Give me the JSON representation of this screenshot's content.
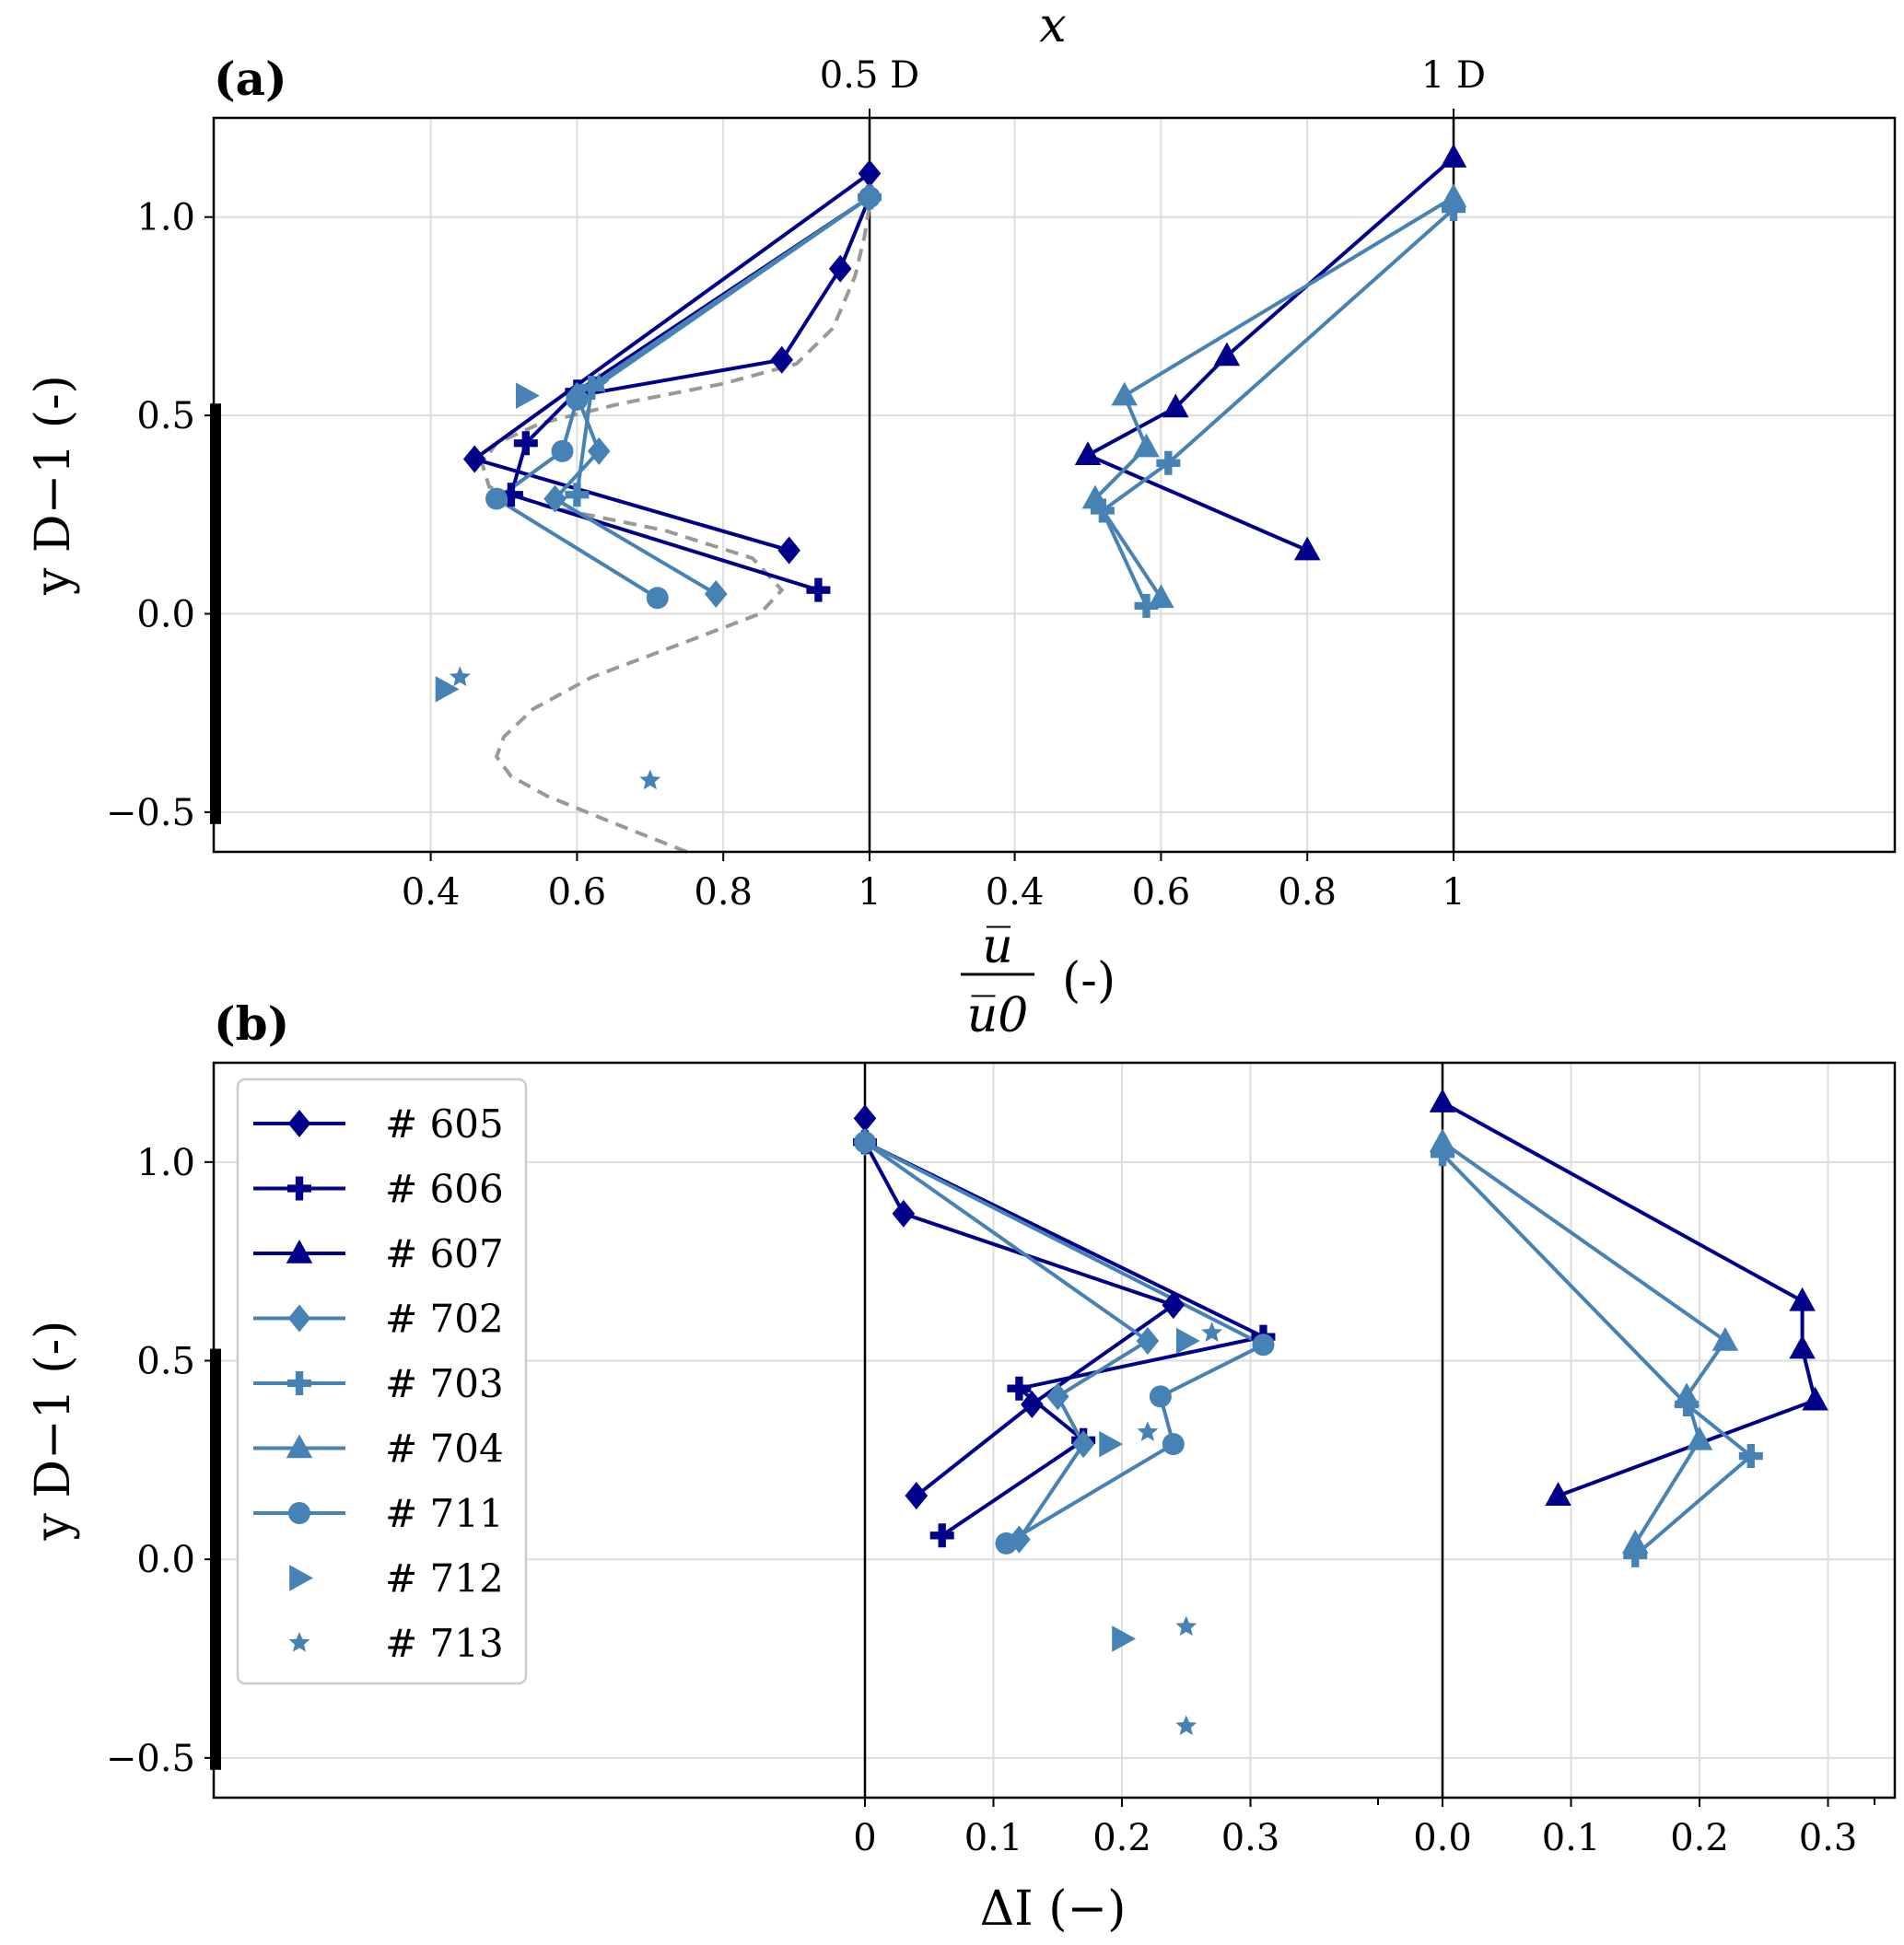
{
  "colors": {
    "dark": "#00008b",
    "light": "#4682b4",
    "model": "#999999",
    "grid": "#dddddd"
  },
  "chart_data": [
    {
      "panel": "a",
      "label": "(a)",
      "type": "line",
      "top_axis_label": "x",
      "top_ticks": [
        "0.5 D",
        "1 D"
      ],
      "xlabel_num": "u̅",
      "xlabel_den": "u̅0",
      "xlabel_unit": "(-)",
      "ylabel": "y D−1 (-)",
      "ylim": [
        -0.6,
        1.25
      ],
      "yticks": [
        -0.5,
        0.0,
        0.5,
        1.0
      ],
      "ytick_labels": [
        "−0.5",
        "0.0",
        "0.5",
        "1.0"
      ],
      "groups": [
        {
          "name": "0.5 D",
          "xlim_ref": 1.0,
          "xticks": [
            0.4,
            0.6,
            0.8,
            1.0
          ],
          "xtick_labels": [
            "0.4",
            "0.6",
            "0.8",
            "1"
          ],
          "model_curve": {
            "name": "model",
            "points": [
              [
                0.75,
                -0.6
              ],
              [
                0.64,
                -0.52
              ],
              [
                0.56,
                -0.46
              ],
              [
                0.51,
                -0.41
              ],
              [
                0.49,
                -0.36
              ],
              [
                0.5,
                -0.31
              ],
              [
                0.54,
                -0.24
              ],
              [
                0.62,
                -0.16
              ],
              [
                0.75,
                -0.07
              ],
              [
                0.85,
                0.0
              ],
              [
                0.88,
                0.06
              ],
              [
                0.84,
                0.14
              ],
              [
                0.72,
                0.21
              ],
              [
                0.56,
                0.27
              ],
              [
                0.48,
                0.32
              ],
              [
                0.47,
                0.38
              ],
              [
                0.49,
                0.43
              ],
              [
                0.55,
                0.48
              ],
              [
                0.66,
                0.53
              ],
              [
                0.8,
                0.58
              ],
              [
                0.9,
                0.63
              ],
              [
                0.95,
                0.72
              ],
              [
                0.98,
                0.85
              ],
              [
                0.993,
                0.95
              ],
              [
                1.0,
                1.03
              ]
            ]
          },
          "series": [
            {
              "name": "# 605",
              "marker": "diamond",
              "color": "dark",
              "line": true,
              "points": [
                [
                  1.0,
                  1.11
                ],
                [
                  0.46,
                  0.39
                ],
                [
                  0.89,
                  0.16
                ]
              ]
            },
            {
              "name": "# 605",
              "marker": "diamond",
              "color": "dark",
              "line": true,
              "points": [
                [
                  1.0,
                  1.05
                ],
                [
                  0.96,
                  0.87
                ],
                [
                  0.88,
                  0.64
                ],
                [
                  0.6,
                  0.55
                ]
              ]
            },
            {
              "name": "# 606",
              "marker": "plus",
              "color": "dark",
              "line": true,
              "points": [
                [
                  1.0,
                  1.05
                ],
                [
                  0.6,
                  0.56
                ],
                [
                  0.53,
                  0.43
                ],
                [
                  0.51,
                  0.3
                ],
                [
                  0.93,
                  0.06
                ]
              ]
            },
            {
              "name": "# 702",
              "marker": "diamond",
              "color": "light",
              "line": true,
              "points": [
                [
                  1.0,
                  1.05
                ],
                [
                  0.6,
                  0.55
                ],
                [
                  0.63,
                  0.41
                ],
                [
                  0.57,
                  0.29
                ],
                [
                  0.79,
                  0.05
                ]
              ]
            },
            {
              "name": "# 703",
              "marker": "plus",
              "color": "light",
              "line": true,
              "points": [
                [
                  1.0,
                  1.05
                ],
                [
                  0.62,
                  0.57
                ],
                [
                  0.6,
                  0.3
                ]
              ]
            },
            {
              "name": "# 711",
              "marker": "circle",
              "color": "light",
              "line": true,
              "points": [
                [
                  1.0,
                  1.05
                ],
                [
                  0.6,
                  0.54
                ],
                [
                  0.58,
                  0.41
                ],
                [
                  0.49,
                  0.29
                ],
                [
                  0.71,
                  0.04
                ]
              ]
            },
            {
              "name": "# 712",
              "marker": "triangle-right",
              "color": "light",
              "line": false,
              "points": [
                [
                  0.53,
                  0.55
                ],
                [
                  0.42,
                  -0.19
                ]
              ]
            },
            {
              "name": "# 713",
              "marker": "star",
              "color": "light",
              "line": false,
              "points": [
                [
                  0.63,
                  0.58
                ],
                [
                  0.44,
                  -0.16
                ],
                [
                  0.7,
                  -0.42
                ]
              ]
            }
          ]
        },
        {
          "name": "1 D",
          "xlim_ref": 1.0,
          "xticks": [
            0.4,
            0.6,
            0.8,
            1.0
          ],
          "xtick_labels": [
            "0.4",
            "0.6",
            "0.8",
            "1"
          ],
          "series": [
            {
              "name": "# 607",
              "marker": "triangle-up",
              "color": "dark",
              "line": true,
              "points": [
                [
                  1.0,
                  1.15
                ],
                [
                  0.69,
                  0.65
                ],
                [
                  0.62,
                  0.52
                ],
                [
                  0.5,
                  0.4
                ],
                [
                  0.8,
                  0.16
                ]
              ]
            },
            {
              "name": "# 703",
              "marker": "plus",
              "color": "light",
              "line": true,
              "points": [
                [
                  1.0,
                  1.02
                ],
                [
                  0.61,
                  0.38
                ],
                [
                  0.52,
                  0.26
                ],
                [
                  0.58,
                  0.02
                ]
              ]
            },
            {
              "name": "# 704",
              "marker": "triangle-up",
              "color": "light",
              "line": true,
              "points": [
                [
                  1.0,
                  1.05
                ],
                [
                  0.55,
                  0.55
                ],
                [
                  0.58,
                  0.42
                ],
                [
                  0.51,
                  0.29
                ],
                [
                  0.6,
                  0.04
                ]
              ]
            }
          ]
        }
      ]
    },
    {
      "panel": "b",
      "label": "(b)",
      "type": "line",
      "xlabel": "ΔI (−)",
      "ylabel": "y D−1 (-)",
      "ylim": [
        -0.6,
        1.25
      ],
      "yticks": [
        -0.5,
        0.0,
        0.5,
        1.0
      ],
      "ytick_labels": [
        "−0.5",
        "0.0",
        "0.5",
        "1.0"
      ],
      "groups": [
        {
          "name": "0.5 D",
          "xticks": [
            0,
            0.1,
            0.2,
            0.3
          ],
          "xtick_labels": [
            "0",
            "0.1",
            "0.2",
            "0.3"
          ],
          "series": [
            {
              "name": "# 605",
              "marker": "diamond",
              "color": "dark",
              "line": true,
              "points": [
                [
                  0.0,
                  1.11
                ],
                [
                  0.0,
                  1.05
                ],
                [
                  0.03,
                  0.87
                ],
                [
                  0.24,
                  0.64
                ],
                [
                  0.13,
                  0.39
                ],
                [
                  0.04,
                  0.16
                ]
              ]
            },
            {
              "name": "# 606",
              "marker": "plus",
              "color": "dark",
              "line": true,
              "points": [
                [
                  0.0,
                  1.05
                ],
                [
                  0.31,
                  0.56
                ],
                [
                  0.12,
                  0.43
                ],
                [
                  0.17,
                  0.3
                ],
                [
                  0.06,
                  0.06
                ]
              ]
            },
            {
              "name": "# 702",
              "marker": "diamond",
              "color": "light",
              "line": true,
              "points": [
                [
                  0.0,
                  1.05
                ],
                [
                  0.22,
                  0.55
                ],
                [
                  0.15,
                  0.41
                ],
                [
                  0.17,
                  0.29
                ],
                [
                  0.12,
                  0.05
                ]
              ]
            },
            {
              "name": "# 711",
              "marker": "circle",
              "color": "light",
              "line": true,
              "points": [
                [
                  0.0,
                  1.05
                ],
                [
                  0.31,
                  0.54
                ],
                [
                  0.23,
                  0.41
                ],
                [
                  0.24,
                  0.29
                ],
                [
                  0.11,
                  0.04
                ]
              ]
            },
            {
              "name": "# 712",
              "marker": "triangle-right",
              "color": "light",
              "line": false,
              "points": [
                [
                  0.25,
                  0.55
                ],
                [
                  0.19,
                  0.29
                ],
                [
                  0.2,
                  -0.2
                ]
              ]
            },
            {
              "name": "# 713",
              "marker": "star",
              "color": "light",
              "line": false,
              "points": [
                [
                  0.27,
                  0.57
                ],
                [
                  0.22,
                  0.32
                ],
                [
                  0.25,
                  -0.17
                ],
                [
                  0.25,
                  -0.42
                ]
              ]
            }
          ]
        },
        {
          "name": "1 D",
          "xticks": [
            0.0,
            0.1,
            0.2,
            0.3
          ],
          "xtick_labels": [
            "0.0",
            "0.1",
            "0.2",
            "0.3"
          ],
          "series": [
            {
              "name": "# 607",
              "marker": "triangle-up",
              "color": "dark",
              "line": true,
              "points": [
                [
                  0.0,
                  1.15
                ],
                [
                  0.28,
                  0.65
                ],
                [
                  0.28,
                  0.53
                ],
                [
                  0.29,
                  0.4
                ],
                [
                  0.09,
                  0.16
                ]
              ]
            },
            {
              "name": "# 703",
              "marker": "plus",
              "color": "light",
              "line": true,
              "points": [
                [
                  0.0,
                  1.02
                ],
                [
                  0.19,
                  0.39
                ],
                [
                  0.24,
                  0.26
                ],
                [
                  0.15,
                  0.01
                ]
              ]
            },
            {
              "name": "# 704",
              "marker": "triangle-up",
              "color": "light",
              "line": true,
              "points": [
                [
                  0.0,
                  1.05
                ],
                [
                  0.22,
                  0.55
                ],
                [
                  0.19,
                  0.41
                ],
                [
                  0.2,
                  0.3
                ],
                [
                  0.15,
                  0.04
                ]
              ]
            }
          ]
        }
      ]
    }
  ],
  "legend": [
    {
      "label": "# 605",
      "marker": "diamond",
      "color": "dark",
      "line": true
    },
    {
      "label": "# 606",
      "marker": "plus",
      "color": "dark",
      "line": true
    },
    {
      "label": "# 607",
      "marker": "triangle-up",
      "color": "dark",
      "line": true
    },
    {
      "label": "# 702",
      "marker": "diamond",
      "color": "light",
      "line": true
    },
    {
      "label": "# 703",
      "marker": "plus",
      "color": "light",
      "line": true
    },
    {
      "label": "# 704",
      "marker": "triangle-up",
      "color": "light",
      "line": true
    },
    {
      "label": "# 711",
      "marker": "circle",
      "color": "light",
      "line": true
    },
    {
      "label": "# 712",
      "marker": "triangle-right",
      "color": "light",
      "line": false
    },
    {
      "label": "# 713",
      "marker": "star",
      "color": "light",
      "line": false
    }
  ]
}
